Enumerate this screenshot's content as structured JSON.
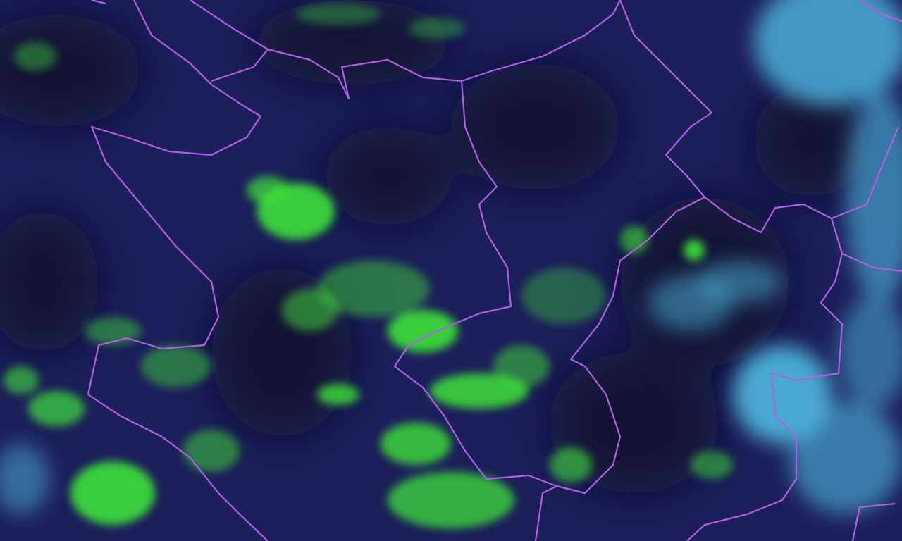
{
  "map": {
    "view": "satellite-imagery",
    "colors": {
      "background": "#1c1f5a",
      "dark_patch": "#120f2a",
      "vegetation": "#3fe03a",
      "cloud": "#4fb8e0",
      "border": "#b060e0"
    }
  }
}
